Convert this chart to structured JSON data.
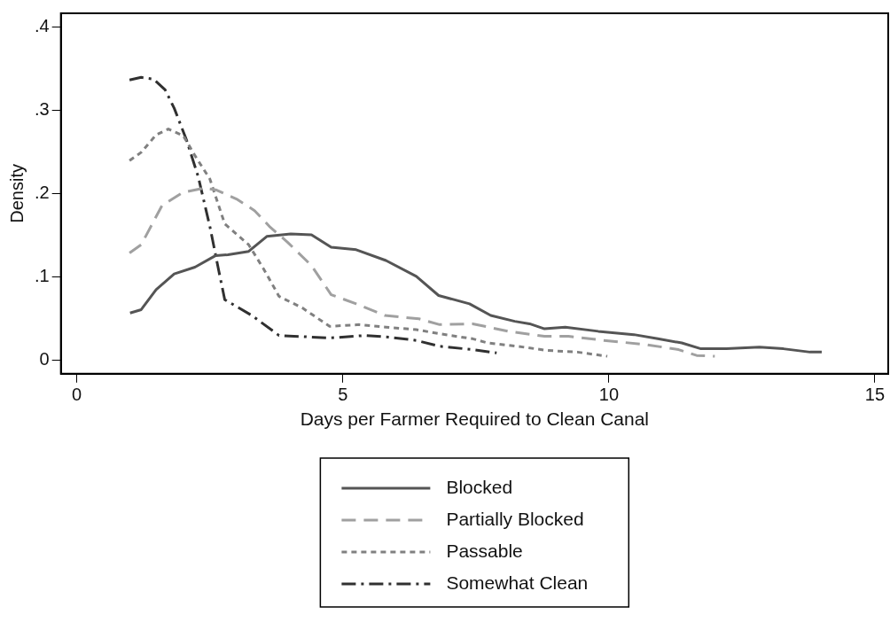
{
  "chart_data": {
    "type": "line",
    "xlabel": "Days per Farmer Required to Clean Canal",
    "ylabel": "Density",
    "xlim": [
      -0.3,
      15.25
    ],
    "xticks": [
      0,
      5,
      10,
      15
    ],
    "ylim": [
      -0.016,
      0.417
    ],
    "yticks": [
      {
        "value": 0,
        "label": "0"
      },
      {
        "value": 0.1,
        "label": ".1"
      },
      {
        "value": 0.2,
        "label": ".2"
      },
      {
        "value": 0.3,
        "label": ".3"
      },
      {
        "value": 0.4,
        "label": ".4"
      }
    ],
    "legend": "bottom",
    "grid": false,
    "marker": "none",
    "series": [
      {
        "name": "Blocked",
        "color": "#555555",
        "line_style": "solid",
        "x": [
          1.0,
          1.21,
          1.49,
          1.83,
          2.22,
          2.61,
          2.84,
          3.23,
          3.57,
          4.02,
          4.41,
          4.78,
          5.25,
          5.81,
          6.38,
          6.8,
          7.38,
          7.78,
          8.23,
          8.51,
          8.79,
          9.18,
          9.8,
          10.47,
          10.92,
          11.37,
          11.73,
          12.21,
          12.83,
          13.28,
          13.78,
          14.0
        ],
        "values": [
          0.057,
          0.061,
          0.085,
          0.104,
          0.112,
          0.126,
          0.127,
          0.131,
          0.149,
          0.152,
          0.151,
          0.136,
          0.133,
          0.12,
          0.101,
          0.078,
          0.068,
          0.054,
          0.047,
          0.044,
          0.038,
          0.04,
          0.035,
          0.031,
          0.026,
          0.021,
          0.014,
          0.014,
          0.016,
          0.014,
          0.01,
          0.01
        ]
      },
      {
        "name": "Partially Blocked",
        "color": "#a0a0a0",
        "line_style": "dashed",
        "x": [
          0.99,
          1.21,
          1.6,
          2.0,
          2.39,
          2.61,
          3.0,
          3.34,
          3.62,
          3.96,
          4.41,
          4.78,
          5.25,
          5.79,
          6.43,
          6.82,
          7.44,
          8.11,
          8.79,
          9.24,
          9.91,
          10.7,
          11.31,
          11.65,
          11.99
        ],
        "values": [
          0.129,
          0.139,
          0.186,
          0.202,
          0.207,
          0.205,
          0.194,
          0.18,
          0.161,
          0.142,
          0.114,
          0.079,
          0.068,
          0.054,
          0.05,
          0.043,
          0.044,
          0.035,
          0.029,
          0.029,
          0.024,
          0.019,
          0.013,
          0.006,
          0.005
        ]
      },
      {
        "name": "Passable",
        "color": "#808080",
        "line_style": "dotted",
        "x": [
          0.99,
          1.21,
          1.49,
          1.72,
          2.0,
          2.22,
          2.5,
          2.78,
          3.23,
          3.51,
          3.8,
          4.24,
          4.75,
          5.31,
          5.81,
          6.38,
          6.82,
          7.44,
          7.72,
          8.28,
          8.84,
          9.41,
          9.97
        ],
        "values": [
          0.24,
          0.25,
          0.271,
          0.278,
          0.27,
          0.246,
          0.218,
          0.164,
          0.139,
          0.11,
          0.077,
          0.063,
          0.041,
          0.043,
          0.04,
          0.037,
          0.032,
          0.026,
          0.021,
          0.017,
          0.012,
          0.01,
          0.005
        ]
      },
      {
        "name": "Somewhat Clean",
        "color": "#303030",
        "line_style": "dashdot",
        "x": [
          0.99,
          1.21,
          1.44,
          1.66,
          1.83,
          2.06,
          2.28,
          2.5,
          2.67,
          2.78,
          3.29,
          3.8,
          4.75,
          5.42,
          5.87,
          6.38,
          6.82,
          7.44,
          7.89
        ],
        "values": [
          0.337,
          0.34,
          0.338,
          0.325,
          0.303,
          0.265,
          0.221,
          0.161,
          0.107,
          0.073,
          0.054,
          0.03,
          0.027,
          0.03,
          0.028,
          0.024,
          0.017,
          0.013,
          0.009
        ]
      }
    ]
  }
}
